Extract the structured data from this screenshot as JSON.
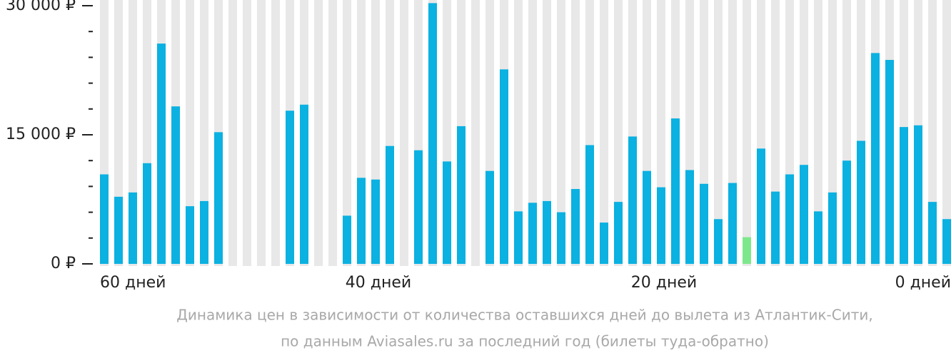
{
  "chart_data": {
    "type": "bar",
    "categories": [
      "60 дней",
      null,
      null,
      null,
      null,
      null,
      null,
      null,
      null,
      null,
      null,
      null,
      null,
      null,
      null,
      null,
      null,
      null,
      null,
      "40 дней",
      null,
      null,
      null,
      null,
      null,
      null,
      null,
      null,
      null,
      null,
      null,
      null,
      null,
      null,
      null,
      null,
      null,
      null,
      null,
      "20 дней",
      null,
      null,
      null,
      null,
      null,
      null,
      null,
      null,
      null,
      null,
      null,
      null,
      null,
      null,
      null,
      null,
      null,
      null,
      null,
      "0 дней"
    ],
    "values": [
      10400,
      7800,
      8300,
      11700,
      25600,
      18300,
      6700,
      7300,
      15300,
      null,
      null,
      null,
      null,
      17800,
      18500,
      null,
      null,
      5600,
      10000,
      9800,
      13700,
      null,
      13200,
      30300,
      11900,
      16000,
      null,
      10800,
      22600,
      6100,
      7100,
      7300,
      6000,
      8700,
      13800,
      4800,
      7200,
      14800,
      10800,
      8900,
      16900,
      10900,
      9300,
      5200,
      9400,
      3100,
      13400,
      8400,
      10400,
      11500,
      6100,
      8300,
      12000,
      14300,
      24500,
      23700,
      15900,
      16100,
      7200,
      5200
    ],
    "color": "#0ab1e1",
    "highlight_color": "#7de88b",
    "highlight_index": 45,
    "background_color": "#e8e8e8",
    "ylim": [
      0,
      30000
    ],
    "yticks": [
      {
        "value": 0,
        "label": "0 ₽"
      },
      {
        "value": 15000,
        "label": "15 000 ₽"
      },
      {
        "value": 30000,
        "label": "30 000 ₽"
      }
    ],
    "yminorticks": [
      3000,
      6000,
      9000,
      12000,
      18000,
      21000,
      24000,
      27000
    ],
    "caption": [
      "Динамика цен в зависимости от количества оставшихся дней до вылета из Атлантик-Сити,",
      "по данным Aviasales.ru за последний год (билеты туда-обратно)"
    ]
  }
}
